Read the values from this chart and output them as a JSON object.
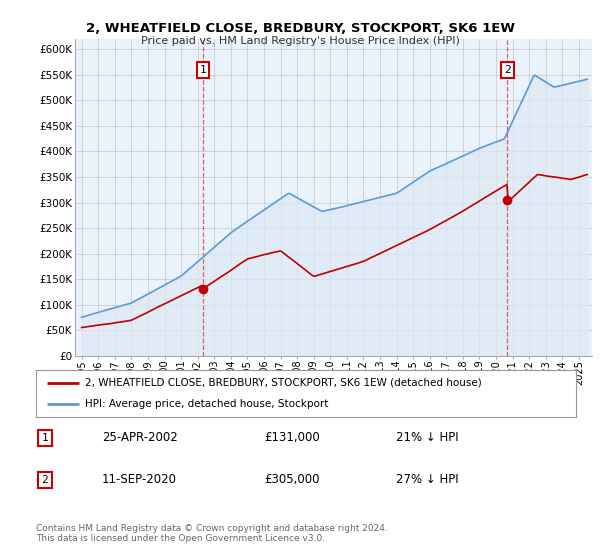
{
  "title": "2, WHEATFIELD CLOSE, BREDBURY, STOCKPORT, SK6 1EW",
  "subtitle": "Price paid vs. HM Land Registry's House Price Index (HPI)",
  "ylim": [
    0,
    620000
  ],
  "xlim_start": 1994.6,
  "xlim_end": 2025.8,
  "sale1_x": 2002.32,
  "sale1_y": 131000,
  "sale2_x": 2020.69,
  "sale2_y": 305000,
  "hpi_color": "#5b9bd5",
  "hpi_fill_color": "#dce9f5",
  "price_color": "#c00000",
  "sale_marker_color": "#c00000",
  "vline_color": "#e06060",
  "plot_bg_color": "#eaf2fb",
  "legend_line1": "2, WHEATFIELD CLOSE, BREDBURY, STOCKPORT, SK6 1EW (detached house)",
  "legend_line2": "HPI: Average price, detached house, Stockport",
  "info1_num": "1",
  "info1_date": "25-APR-2002",
  "info1_price": "£131,000",
  "info1_hpi": "21% ↓ HPI",
  "info2_num": "2",
  "info2_date": "11-SEP-2020",
  "info2_price": "£305,000",
  "info2_hpi": "27% ↓ HPI",
  "footer": "Contains HM Land Registry data © Crown copyright and database right 2024.\nThis data is licensed under the Open Government Licence v3.0.",
  "background_color": "#ffffff",
  "grid_color": "#cccccc"
}
